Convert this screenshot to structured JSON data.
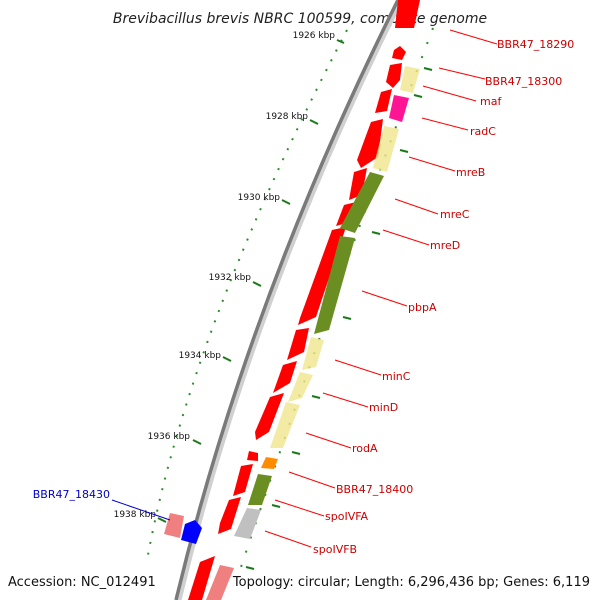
{
  "title": "Brevibacillus brevis NBRC 100599, complete genome",
  "accession": "Accession: NC_012491",
  "topology": "Topology: circular; Length: 6,296,436 bp; Genes: 6,119",
  "ticks": [
    "1926 kbp",
    "1928 kbp",
    "1930 kbp",
    "1932 kbp",
    "1934 kbp",
    "1936 kbp",
    "1938 kbp"
  ],
  "genes": [
    {
      "label": "BBR47_18290",
      "color": "#cc0000"
    },
    {
      "label": "BBR47_18300",
      "color": "#cc0000"
    },
    {
      "label": "maf",
      "color": "#cc0000"
    },
    {
      "label": "radC",
      "color": "#cc0000"
    },
    {
      "label": "mreB",
      "color": "#cc0000"
    },
    {
      "label": "mreC",
      "color": "#cc0000"
    },
    {
      "label": "mreD",
      "color": "#cc0000"
    },
    {
      "label": "pbpA",
      "color": "#cc0000"
    },
    {
      "label": "minC",
      "color": "#cc0000"
    },
    {
      "label": "minD",
      "color": "#cc0000"
    },
    {
      "label": "rodA",
      "color": "#cc0000"
    },
    {
      "label": "BBR47_18400",
      "color": "#cc0000"
    },
    {
      "label": "spoIVFA",
      "color": "#cc0000"
    },
    {
      "label": "spoIVFB",
      "color": "#cc0000"
    },
    {
      "label": "BBR47_18430",
      "color": "#0000cc"
    }
  ],
  "colors": {
    "backbone": "#808080",
    "cds": "#ff0000",
    "cds_light": "#f08080",
    "feature_pale": "#eee8a0",
    "feature_olive": "#6b8e23",
    "feature_magenta": "#ff1493",
    "feature_orange": "#ff8c00",
    "feature_gray": "#c0c0c0",
    "feature_blue": "#0000ff",
    "tick": "#006400"
  }
}
